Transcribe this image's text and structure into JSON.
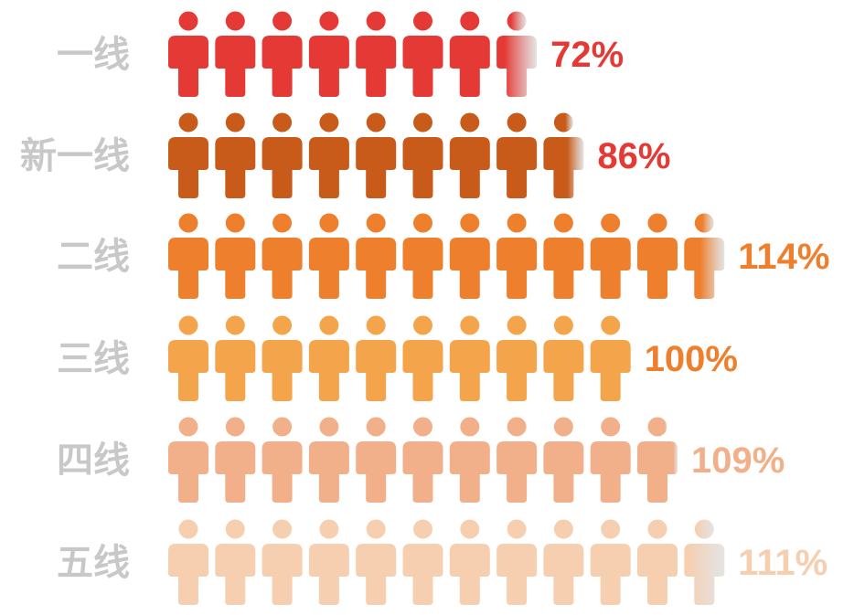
{
  "chart_data": {
    "type": "bar",
    "categories": [
      "一线",
      "新一线",
      "二线",
      "三线",
      "四线",
      "五线"
    ],
    "values": [
      72,
      86,
      114,
      100,
      109,
      111
    ],
    "value_labels": [
      "72%",
      "86%",
      "114%",
      "100%",
      "109%",
      "111%"
    ],
    "unit": "%",
    "icons_per_10_percent": 1,
    "icon": "person-icon",
    "colors": [
      "#e53935",
      "#c95b1a",
      "#ee7f2d",
      "#f4a54b",
      "#f2b08a",
      "#f6cfb0"
    ],
    "label_colors": [
      "#e53935",
      "#e53935",
      "#ee7f2d",
      "#ee7f2d",
      "#f2b08a",
      "#f6cfb0"
    ],
    "category_label_color": "#c8c8c8",
    "title": "",
    "xlabel": "",
    "ylabel": "",
    "legend": "none",
    "grid": false
  }
}
